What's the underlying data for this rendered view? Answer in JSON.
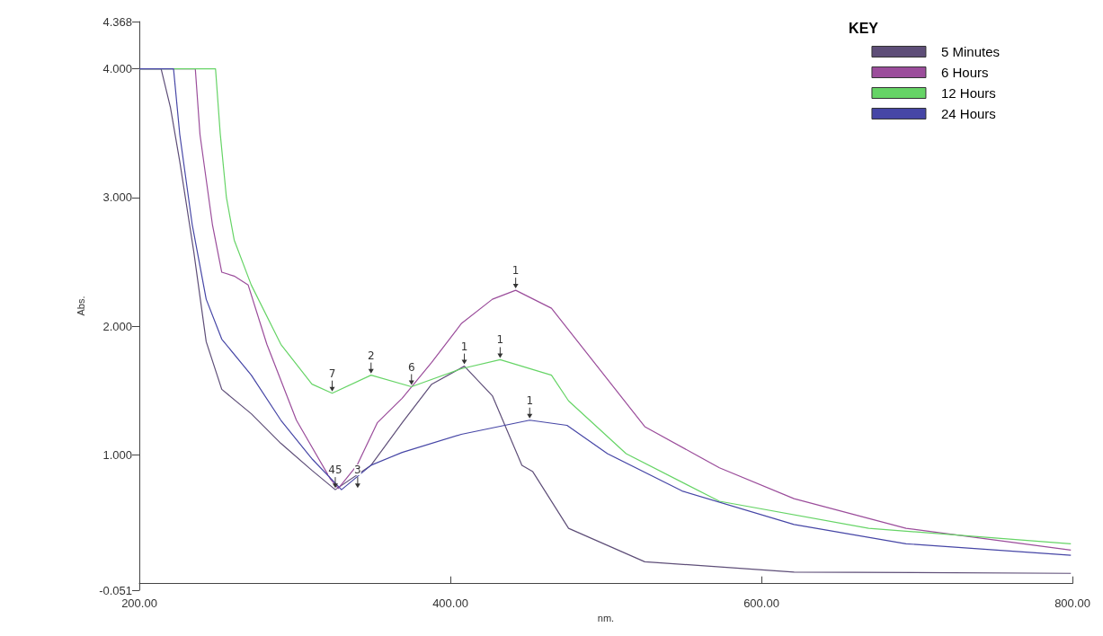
{
  "chart_data": {
    "type": "line",
    "xlabel": "nm.",
    "ylabel": "Abs.",
    "legend_title": "KEY",
    "legend": "top right",
    "grid": false,
    "marker": "none",
    "line_style": "solid",
    "xlim": [
      200,
      800
    ],
    "xticks": [
      {
        "value": 200,
        "label": "200.00"
      },
      {
        "value": 400,
        "label": "400.00"
      },
      {
        "value": 600,
        "label": "600.00"
      },
      {
        "value": 800,
        "label": "800.00"
      }
    ],
    "ylim": [
      -0.051,
      4.368
    ],
    "yticks": [
      {
        "value": -0.051,
        "label": "-0.051"
      },
      {
        "value": 1,
        "label": "1.000"
      },
      {
        "value": 2,
        "label": "2.000"
      },
      {
        "value": 3,
        "label": "3.000"
      },
      {
        "value": 4,
        "label": "4.000"
      },
      {
        "value": 4.368,
        "label": "4.368"
      }
    ],
    "series": [
      {
        "name": "5 Minutes",
        "color": "#5e4e78",
        "x": [
          200,
          214,
          220,
          226,
          235,
          243,
          253,
          272,
          291,
          311,
          326,
          349,
          369,
          388,
          409,
          427,
          446,
          453,
          476,
          525,
          621,
          799
        ],
        "values": [
          4.0,
          4.0,
          3.7,
          3.28,
          2.58,
          1.88,
          1.51,
          1.32,
          1.09,
          0.88,
          0.73,
          0.92,
          1.25,
          1.55,
          1.69,
          1.46,
          0.92,
          0.87,
          0.43,
          0.17,
          0.09,
          0.08
        ]
      },
      {
        "name": "6 Hours",
        "color": "#9b4d9b",
        "x": [
          200,
          236,
          239,
          247,
          253,
          261,
          270,
          282,
          301,
          323,
          328,
          340,
          353,
          369,
          388,
          407,
          427,
          442,
          465,
          525,
          573,
          621,
          693,
          799
        ],
        "values": [
          4.0,
          4.0,
          3.49,
          2.79,
          2.42,
          2.39,
          2.32,
          1.86,
          1.27,
          0.81,
          0.74,
          0.92,
          1.25,
          1.44,
          1.72,
          2.02,
          2.21,
          2.28,
          2.14,
          1.22,
          0.9,
          0.66,
          0.43,
          0.26
        ]
      },
      {
        "name": "12 Hours",
        "color": "#66d466",
        "x": [
          200,
          249,
          252,
          256,
          261,
          272,
          291,
          311,
          324,
          349,
          375,
          407,
          432,
          465,
          476,
          513,
          573,
          669,
          799
        ],
        "values": [
          4.0,
          4.0,
          3.5,
          3.0,
          2.67,
          2.32,
          1.86,
          1.55,
          1.48,
          1.62,
          1.53,
          1.67,
          1.74,
          1.62,
          1.42,
          1.01,
          0.64,
          0.43,
          0.31
        ]
      },
      {
        "name": "24 Hours",
        "color": "#4646a6",
        "x": [
          200,
          222,
          226,
          234,
          243,
          253,
          272,
          291,
          311,
          330,
          349,
          369,
          407,
          451,
          475,
          501,
          549,
          621,
          693,
          799
        ],
        "values": [
          4.0,
          4.0,
          3.49,
          2.79,
          2.21,
          1.9,
          1.62,
          1.27,
          0.97,
          0.73,
          0.92,
          1.02,
          1.16,
          1.27,
          1.23,
          1.01,
          0.72,
          0.46,
          0.31,
          0.22
        ]
      }
    ],
    "annotations": [
      {
        "text": "1",
        "x": 409,
        "y": 1.69
      },
      {
        "text": "1",
        "x": 442,
        "y": 2.28
      },
      {
        "text": "1",
        "x": 432,
        "y": 1.74
      },
      {
        "text": "2",
        "x": 349,
        "y": 1.62
      },
      {
        "text": "7",
        "x": 324,
        "y": 1.48
      },
      {
        "text": "6",
        "x": 375,
        "y": 1.53
      },
      {
        "text": "1",
        "x": 451,
        "y": 1.27
      },
      {
        "text": "45",
        "x": 326,
        "y": 0.73
      },
      {
        "text": "3",
        "x": 330,
        "y": 0.73
      }
    ]
  }
}
